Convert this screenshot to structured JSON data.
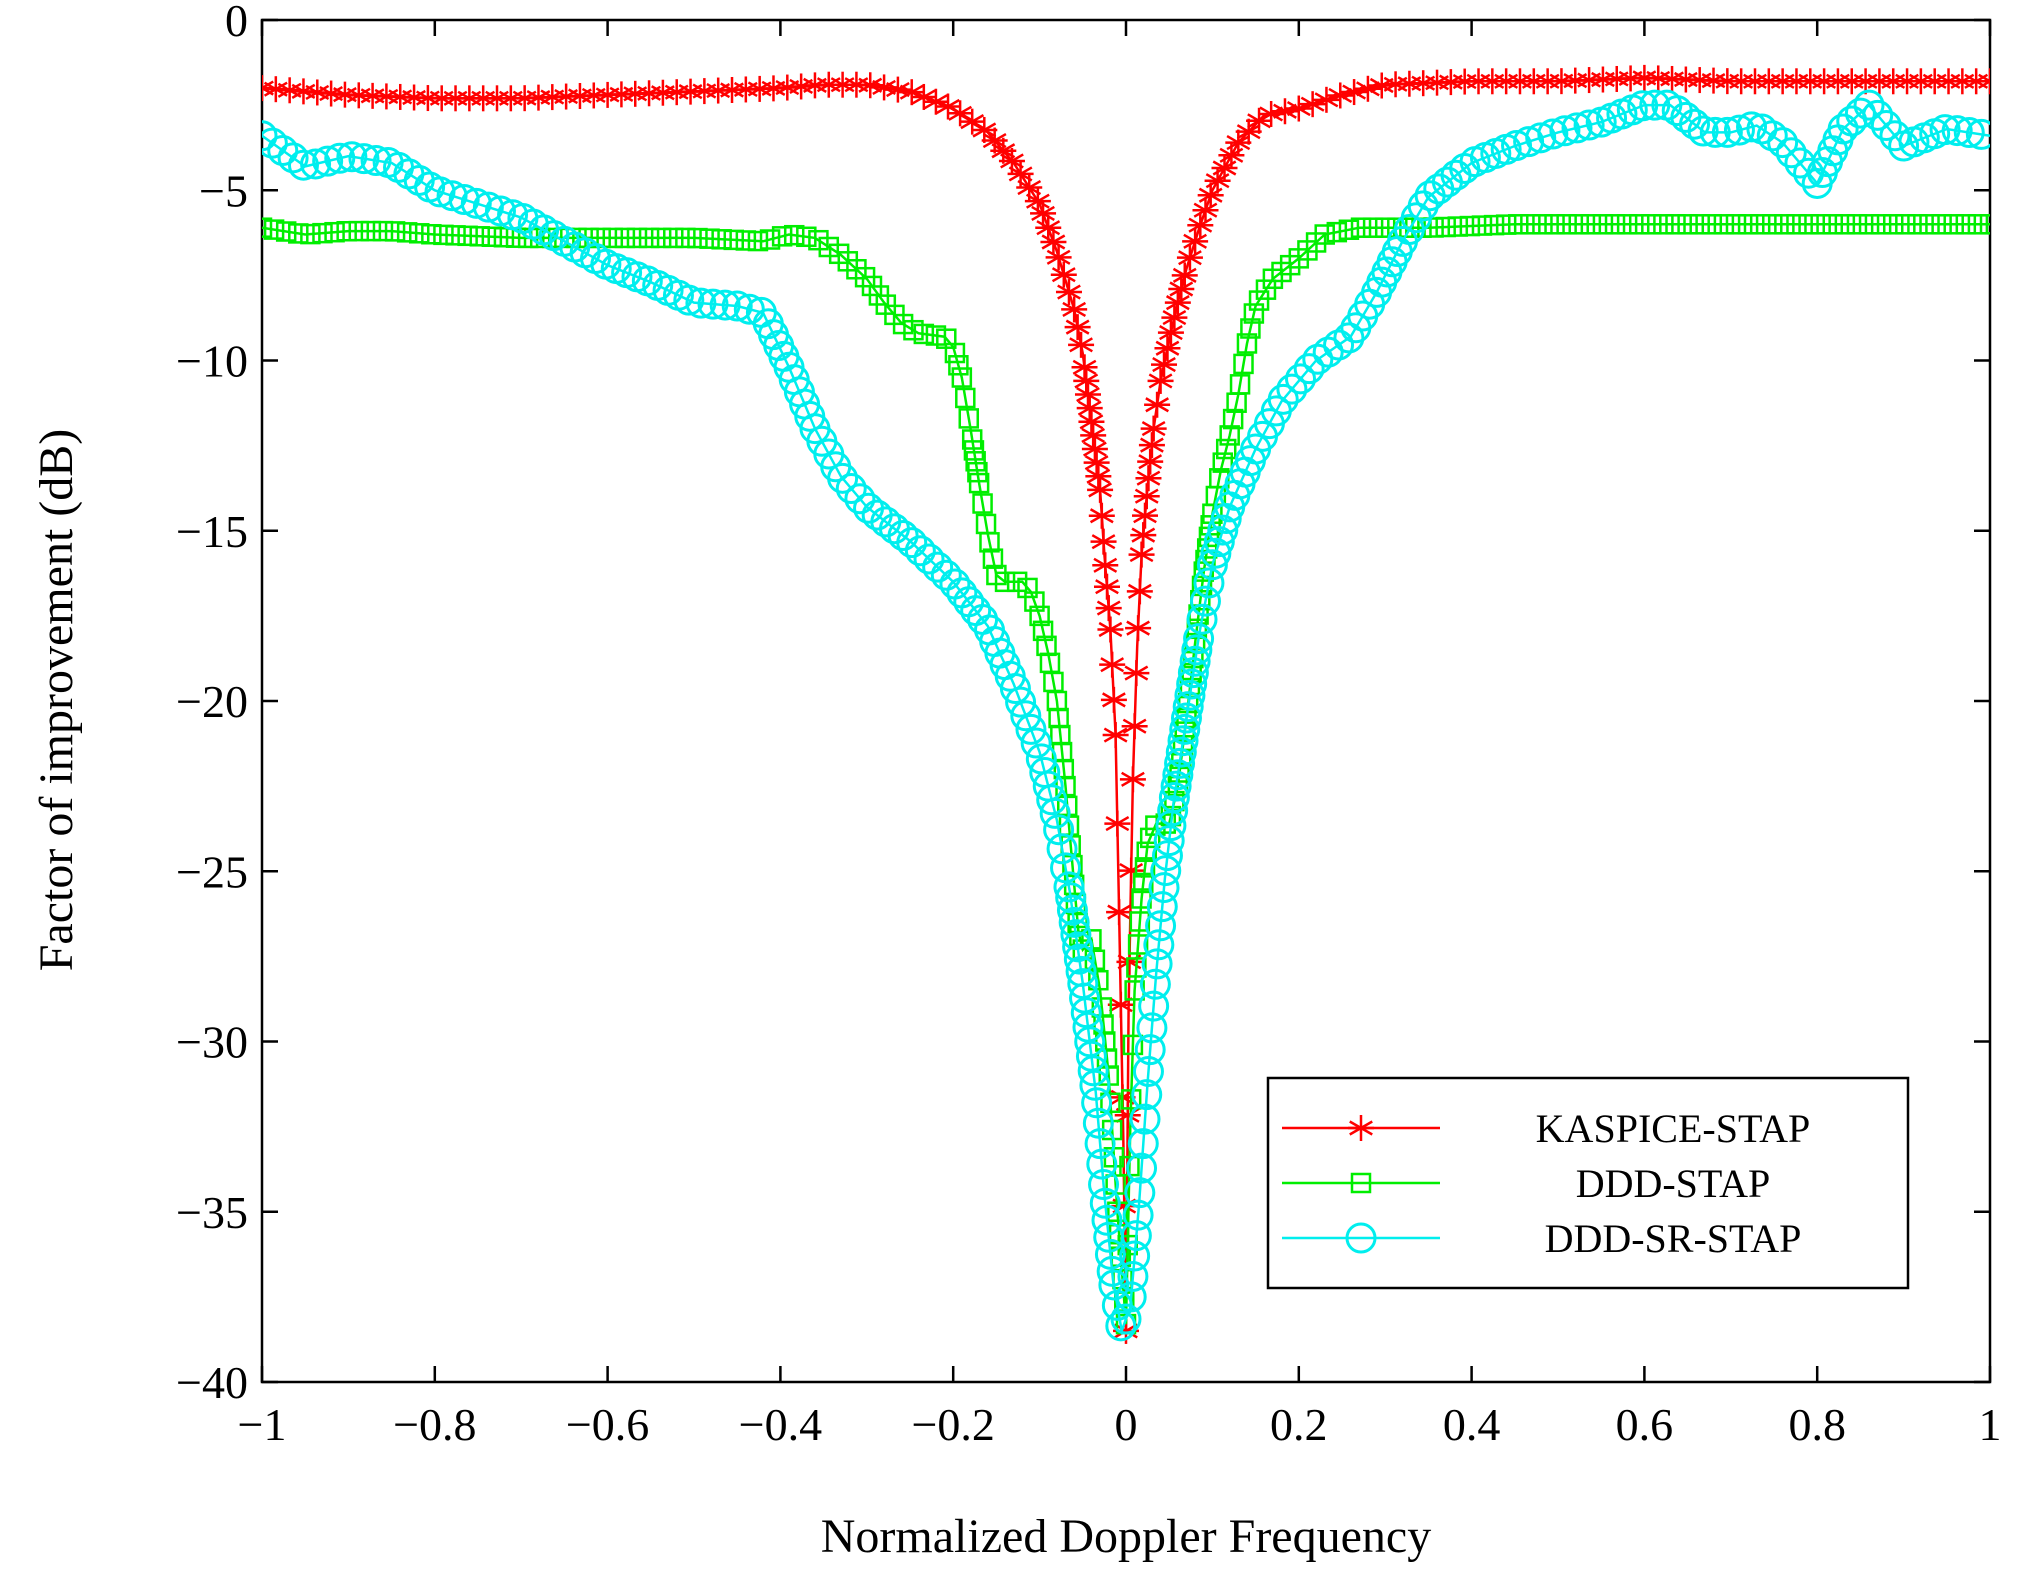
{
  "chart_data": {
    "type": "line",
    "title": "",
    "xlabel": "Normalized Doppler Frequency",
    "ylabel": "Factor of improvement (dB)",
    "xlim": [
      -1,
      1
    ],
    "ylim": [
      -40,
      0
    ],
    "xticks": [
      -1,
      -0.8,
      -0.6,
      -0.4,
      -0.2,
      0,
      0.2,
      0.4,
      0.6,
      0.8,
      1
    ],
    "xtick_labels": [
      "−1",
      "−0.8",
      "−0.6",
      "−0.4",
      "−0.2",
      "0",
      "0.2",
      "0.4",
      "0.6",
      "0.8",
      "1"
    ],
    "yticks": [
      0,
      -5,
      -10,
      -15,
      -20,
      -25,
      -30,
      -35,
      -40
    ],
    "ytick_labels": [
      "0",
      "−5",
      "−10",
      "−15",
      "−20",
      "−25",
      "−30",
      "−35",
      "−40"
    ],
    "grid": false,
    "legend_position": "bottom-right",
    "series": [
      {
        "name": "KASPICE-STAP",
        "color": "#ff0000",
        "marker": "asterisk",
        "points": [
          [
            -1,
            -2.0
          ],
          [
            -0.9,
            -2.2
          ],
          [
            -0.8,
            -2.3
          ],
          [
            -0.7,
            -2.3
          ],
          [
            -0.6,
            -2.2
          ],
          [
            -0.5,
            -2.1
          ],
          [
            -0.4,
            -2.0
          ],
          [
            -0.35,
            -1.9
          ],
          [
            -0.3,
            -1.9
          ],
          [
            -0.25,
            -2.1
          ],
          [
            -0.2,
            -2.6
          ],
          [
            -0.16,
            -3.3
          ],
          [
            -0.13,
            -4.2
          ],
          [
            -0.1,
            -5.4
          ],
          [
            -0.08,
            -6.8
          ],
          [
            -0.06,
            -8.5
          ],
          [
            -0.05,
            -9.8
          ],
          [
            -0.04,
            -11.8
          ],
          [
            -0.03,
            -13.8
          ],
          [
            -0.025,
            -15.7
          ],
          [
            -0.018,
            -17.9
          ],
          [
            -0.012,
            -21.0
          ],
          [
            -0.008,
            -26.2
          ],
          [
            -0.003,
            -33.0
          ],
          [
            0,
            -38.5
          ],
          [
            0.003,
            -29.0
          ],
          [
            0.008,
            -22.3
          ],
          [
            0.013,
            -18.4
          ],
          [
            0.018,
            -15.7
          ],
          [
            0.025,
            -13.7
          ],
          [
            0.032,
            -12.0
          ],
          [
            0.04,
            -10.6
          ],
          [
            0.05,
            -9.4
          ],
          [
            0.06,
            -8.3
          ],
          [
            0.07,
            -7.3
          ],
          [
            0.085,
            -6.1
          ],
          [
            0.1,
            -5.0
          ],
          [
            0.13,
            -3.6
          ],
          [
            0.16,
            -2.8
          ],
          [
            0.2,
            -2.6
          ],
          [
            0.25,
            -2.2
          ],
          [
            0.3,
            -1.9
          ],
          [
            0.4,
            -1.8
          ],
          [
            0.5,
            -1.8
          ],
          [
            0.6,
            -1.7
          ],
          [
            0.7,
            -1.8
          ],
          [
            0.8,
            -1.8
          ],
          [
            0.9,
            -1.8
          ],
          [
            1,
            -1.8
          ]
        ]
      },
      {
        "name": "DDD-STAP",
        "color": "#00ee00",
        "marker": "square",
        "points": [
          [
            -1,
            -6.1
          ],
          [
            -0.95,
            -6.3
          ],
          [
            -0.9,
            -6.2
          ],
          [
            -0.85,
            -6.2
          ],
          [
            -0.8,
            -6.3
          ],
          [
            -0.7,
            -6.4
          ],
          [
            -0.6,
            -6.4
          ],
          [
            -0.5,
            -6.4
          ],
          [
            -0.42,
            -6.5
          ],
          [
            -0.39,
            -6.3
          ],
          [
            -0.36,
            -6.4
          ],
          [
            -0.33,
            -6.9
          ],
          [
            -0.3,
            -7.6
          ],
          [
            -0.28,
            -8.3
          ],
          [
            -0.26,
            -8.9
          ],
          [
            -0.24,
            -9.2
          ],
          [
            -0.21,
            -9.3
          ],
          [
            -0.2,
            -9.6
          ],
          [
            -0.19,
            -10.5
          ],
          [
            -0.18,
            -12.0
          ],
          [
            -0.17,
            -13.6
          ],
          [
            -0.16,
            -15.1
          ],
          [
            -0.15,
            -16.3
          ],
          [
            -0.14,
            -16.5
          ],
          [
            -0.12,
            -16.5
          ],
          [
            -0.11,
            -16.8
          ],
          [
            -0.1,
            -17.5
          ],
          [
            -0.09,
            -18.6
          ],
          [
            -0.08,
            -20.0
          ],
          [
            -0.07,
            -22.5
          ],
          [
            -0.06,
            -25.4
          ],
          [
            -0.055,
            -26.8
          ],
          [
            -0.05,
            -27.3
          ],
          [
            -0.04,
            -27.0
          ],
          [
            -0.03,
            -28.5
          ],
          [
            -0.02,
            -31.0
          ],
          [
            -0.01,
            -35.0
          ],
          [
            0,
            -38.3
          ],
          [
            0.005,
            -32.5
          ],
          [
            0.01,
            -28.5
          ],
          [
            0.018,
            -25.8
          ],
          [
            0.025,
            -24.2
          ],
          [
            0.035,
            -23.6
          ],
          [
            0.05,
            -23.6
          ],
          [
            0.06,
            -22.5
          ],
          [
            0.07,
            -20.5
          ],
          [
            0.08,
            -18.3
          ],
          [
            0.09,
            -16.2
          ],
          [
            0.1,
            -14.5
          ],
          [
            0.11,
            -13.2
          ],
          [
            0.12,
            -12.2
          ],
          [
            0.13,
            -11.0
          ],
          [
            0.14,
            -9.5
          ],
          [
            0.15,
            -8.4
          ],
          [
            0.17,
            -7.6
          ],
          [
            0.2,
            -7.0
          ],
          [
            0.23,
            -6.3
          ],
          [
            0.27,
            -6.1
          ],
          [
            0.35,
            -6.1
          ],
          [
            0.45,
            -6.0
          ],
          [
            0.6,
            -6.0
          ],
          [
            0.8,
            -6.0
          ],
          [
            1,
            -6.0
          ]
        ]
      },
      {
        "name": "DDD-SR-STAP",
        "color": "#00eeee",
        "marker": "circle",
        "points": [
          [
            -1,
            -3.4
          ],
          [
            -0.95,
            -4.3
          ],
          [
            -0.9,
            -4.0
          ],
          [
            -0.85,
            -4.2
          ],
          [
            -0.8,
            -5.0
          ],
          [
            -0.75,
            -5.4
          ],
          [
            -0.7,
            -5.8
          ],
          [
            -0.65,
            -6.5
          ],
          [
            -0.6,
            -7.2
          ],
          [
            -0.55,
            -7.7
          ],
          [
            -0.5,
            -8.3
          ],
          [
            -0.45,
            -8.4
          ],
          [
            -0.42,
            -8.6
          ],
          [
            -0.39,
            -10.2
          ],
          [
            -0.36,
            -12.0
          ],
          [
            -0.33,
            -13.4
          ],
          [
            -0.3,
            -14.3
          ],
          [
            -0.25,
            -15.3
          ],
          [
            -0.2,
            -16.5
          ],
          [
            -0.16,
            -17.8
          ],
          [
            -0.13,
            -19.5
          ],
          [
            -0.1,
            -21.5
          ],
          [
            -0.08,
            -23.5
          ],
          [
            -0.065,
            -25.6
          ],
          [
            -0.05,
            -28.3
          ],
          [
            -0.035,
            -31.5
          ],
          [
            -0.025,
            -34.5
          ],
          [
            -0.015,
            -37.0
          ],
          [
            -0.005,
            -38.5
          ],
          [
            0.005,
            -37.8
          ],
          [
            0.015,
            -34.8
          ],
          [
            0.025,
            -31.2
          ],
          [
            0.035,
            -28.0
          ],
          [
            0.045,
            -25.2
          ],
          [
            0.055,
            -23.0
          ],
          [
            0.07,
            -20.5
          ],
          [
            0.085,
            -18.0
          ],
          [
            0.1,
            -16.0
          ],
          [
            0.12,
            -14.3
          ],
          [
            0.15,
            -12.6
          ],
          [
            0.18,
            -11.2
          ],
          [
            0.22,
            -10.0
          ],
          [
            0.26,
            -9.3
          ],
          [
            0.29,
            -8.0
          ],
          [
            0.32,
            -6.5
          ],
          [
            0.35,
            -5.2
          ],
          [
            0.4,
            -4.2
          ],
          [
            0.45,
            -3.7
          ],
          [
            0.5,
            -3.3
          ],
          [
            0.55,
            -3.0
          ],
          [
            0.6,
            -2.5
          ],
          [
            0.63,
            -2.5
          ],
          [
            0.67,
            -3.3
          ],
          [
            0.7,
            -3.3
          ],
          [
            0.73,
            -3.1
          ],
          [
            0.76,
            -3.6
          ],
          [
            0.8,
            -4.8
          ],
          [
            0.83,
            -3.2
          ],
          [
            0.86,
            -2.5
          ],
          [
            0.9,
            -3.7
          ],
          [
            0.95,
            -3.2
          ],
          [
            1,
            -3.4
          ]
        ]
      }
    ]
  }
}
